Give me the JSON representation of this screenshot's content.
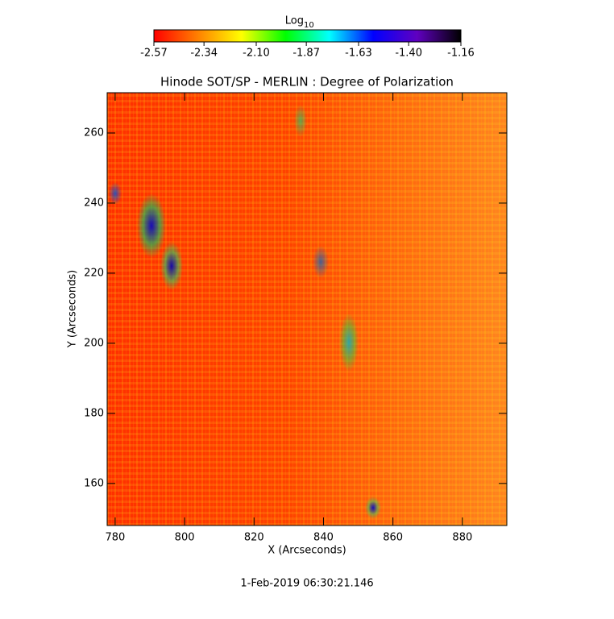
{
  "chart_data": {
    "type": "heatmap",
    "title": "Hinode SOT/SP - MERLIN : Degree of Polarization",
    "x_label": "X (Arcseconds)",
    "y_label": "Y (Arcseconds)",
    "footer": "1-Feb-2019 06:30:21.146",
    "xlim": [
      777.7,
      892.8
    ],
    "xticks": [
      780,
      800,
      820,
      840,
      860,
      880
    ],
    "ylim": [
      148,
      271.5
    ],
    "yticks": [
      160,
      180,
      200,
      220,
      240,
      260
    ],
    "colorbar": {
      "label": "Log",
      "label_subscript": "10",
      "lim": [
        -2.57,
        -1.16
      ],
      "ticks": [
        -2.57,
        -2.34,
        {
          "value": -2.1,
          "label": "-2.10"
        },
        -1.87,
        -1.63,
        {
          "value": -1.4,
          "label": "-1.40"
        },
        -1.16
      ],
      "colormap": [
        "#ff0000",
        "#ff8000",
        "#ffff00",
        "#00ff00",
        "#00ffff",
        "#0000ff",
        "#6000c0",
        "#000000"
      ]
    }
  }
}
